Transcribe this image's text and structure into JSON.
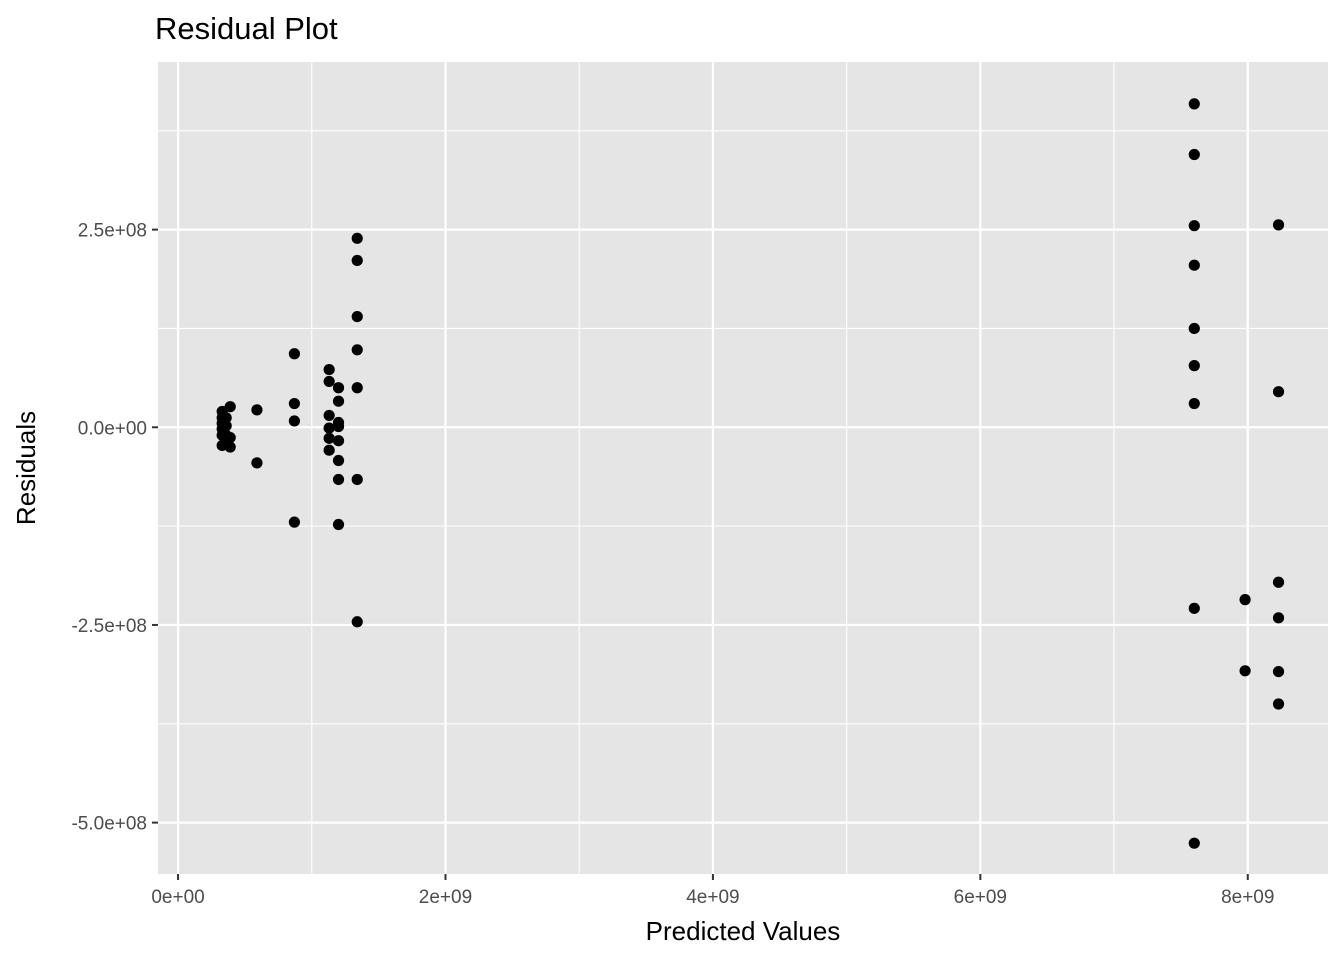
{
  "chart_data": {
    "type": "scatter",
    "title": "Residual Plot",
    "xlabel": "Predicted Values",
    "ylabel": "Residuals",
    "xlim": [
      -150000000.0,
      8600000000.0
    ],
    "ylim": [
      -565000000.0,
      462000000.0
    ],
    "x_ticks": [
      {
        "value": 0,
        "label": "0e+00"
      },
      {
        "value": 2000000000.0,
        "label": "2e+09"
      },
      {
        "value": 4000000000.0,
        "label": "4e+09"
      },
      {
        "value": 6000000000.0,
        "label": "6e+09"
      },
      {
        "value": 8000000000.0,
        "label": "8e+09"
      }
    ],
    "x_minor": [
      1000000000.0,
      3000000000.0,
      5000000000.0,
      7000000000.0
    ],
    "y_ticks": [
      {
        "value": 250000000.0,
        "label": "2.5e+08"
      },
      {
        "value": 0,
        "label": "0.0e+00"
      },
      {
        "value": -250000000.0,
        "label": "-2.5e+08"
      },
      {
        "value": -500000000.0,
        "label": "-5.0e+08"
      }
    ],
    "y_minor": [
      375000000.0,
      125000000.0,
      -125000000.0,
      -375000000.0
    ],
    "grid": true,
    "colors": {
      "panel": "#e5e5e5",
      "grid": "#ffffff",
      "point": "#000000",
      "tick": "#333333"
    },
    "points": [
      [
        330000000.0,
        20000000.0
      ],
      [
        330000000.0,
        12000000.0
      ],
      [
        330000000.0,
        5000000.0
      ],
      [
        330000000.0,
        -2000000.0
      ],
      [
        330000000.0,
        -10000000.0
      ],
      [
        330000000.0,
        -23000000.0
      ],
      [
        360000000.0,
        12000000.0
      ],
      [
        360000000.0,
        2000000.0
      ],
      [
        360000000.0,
        -10000000.0
      ],
      [
        360000000.0,
        -17000000.0
      ],
      [
        390000000.0,
        26000000.0
      ],
      [
        390000000.0,
        -13000000.0
      ],
      [
        390000000.0,
        -25000000.0
      ],
      [
        590000000.0,
        22000000.0
      ],
      [
        590000000.0,
        -45000000.0
      ],
      [
        870000000.0,
        93000000.0
      ],
      [
        870000000.0,
        30000000.0
      ],
      [
        870000000.0,
        8000000.0
      ],
      [
        870000000.0,
        -120000000.0
      ],
      [
        1130000000.0,
        73000000.0
      ],
      [
        1130000000.0,
        58000000.0
      ],
      [
        1130000000.0,
        15000000.0
      ],
      [
        1130000000.0,
        -1000000.0
      ],
      [
        1130000000.0,
        -14000000.0
      ],
      [
        1130000000.0,
        -29000000.0
      ],
      [
        1200000000.0,
        50000000.0
      ],
      [
        1200000000.0,
        33000000.0
      ],
      [
        1200000000.0,
        6000000.0
      ],
      [
        1200000000.0,
        1000000.0
      ],
      [
        1200000000.0,
        -17000000.0
      ],
      [
        1200000000.0,
        -42000000.0
      ],
      [
        1200000000.0,
        -66000000.0
      ],
      [
        1200000000.0,
        -123000000.0
      ],
      [
        1340000000.0,
        239000000.0
      ],
      [
        1340000000.0,
        211000000.0
      ],
      [
        1340000000.0,
        140000000.0
      ],
      [
        1340000000.0,
        98000000.0
      ],
      [
        1340000000.0,
        50000000.0
      ],
      [
        1340000000.0,
        -66000000.0
      ],
      [
        1340000000.0,
        -246000000.0
      ],
      [
        7600000000.0,
        409000000.0
      ],
      [
        7600000000.0,
        345000000.0
      ],
      [
        7600000000.0,
        255000000.0
      ],
      [
        7600000000.0,
        205000000.0
      ],
      [
        7600000000.0,
        125000000.0
      ],
      [
        7600000000.0,
        78000000.0
      ],
      [
        7600000000.0,
        30000000.0
      ],
      [
        7600000000.0,
        -229000000.0
      ],
      [
        7600000000.0,
        -526000000.0
      ],
      [
        7980000000.0,
        -218000000.0
      ],
      [
        7980000000.0,
        -308000000.0
      ],
      [
        8230000000.0,
        256000000.0
      ],
      [
        8230000000.0,
        45000000.0
      ],
      [
        8230000000.0,
        -196000000.0
      ],
      [
        8230000000.0,
        -241000000.0
      ],
      [
        8230000000.0,
        -309000000.0
      ],
      [
        8230000000.0,
        -350000000.0
      ]
    ]
  }
}
